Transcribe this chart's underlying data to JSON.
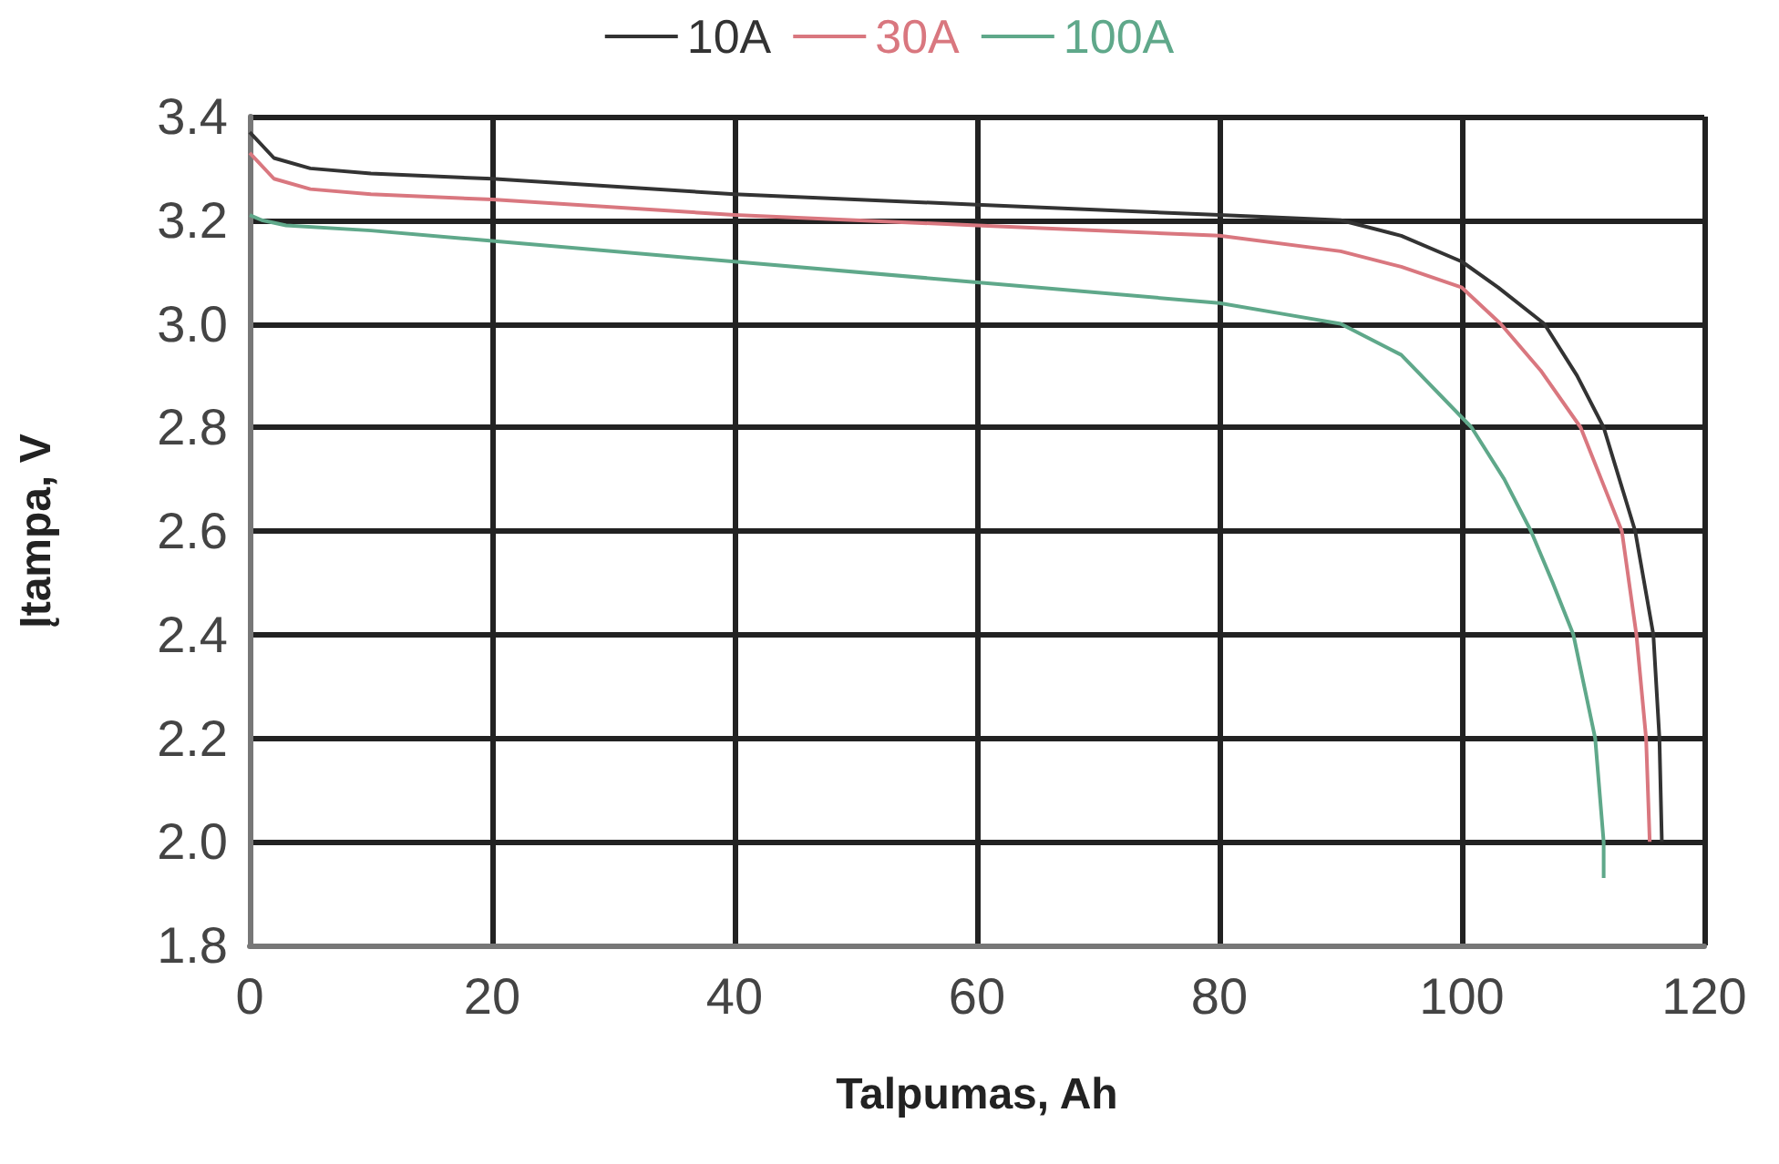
{
  "chart_data": {
    "type": "line",
    "xlabel": "Talpumas, Ah",
    "ylabel": "Įtampa, V",
    "xlim": [
      0,
      120
    ],
    "xticks": [
      0,
      20,
      40,
      60,
      80,
      100,
      120
    ],
    "ylim": [
      1.8,
      3.4
    ],
    "yticks": [
      {
        "value": 1.8,
        "label": "1.8"
      },
      {
        "value": 2.0,
        "label": "2.0"
      },
      {
        "value": 2.2,
        "label": "2.2"
      },
      {
        "value": 2.4,
        "label": "2.4"
      },
      {
        "value": 2.6,
        "label": "2.6"
      },
      {
        "value": 2.8,
        "label": "2.8"
      },
      {
        "value": 3.0,
        "label": "3.0"
      },
      {
        "value": 3.2,
        "label": "3.2"
      },
      {
        "value": 3.4,
        "label": "3.4"
      }
    ],
    "grid": true,
    "legend": "top",
    "marker": "none",
    "line_style": "solid",
    "series": [
      {
        "name": "10A",
        "color": "#333333",
        "x": [
          0,
          2,
          5,
          10,
          20,
          40,
          60,
          80,
          90,
          95,
          100,
          103,
          106.8,
          109.5,
          111.7,
          113,
          114.3,
          115.8,
          116.3,
          116.5
        ],
        "values": [
          3.37,
          3.32,
          3.3,
          3.29,
          3.28,
          3.25,
          3.23,
          3.21,
          3.2,
          3.17,
          3.12,
          3.07,
          3.0,
          2.9,
          2.8,
          2.7,
          2.6,
          2.4,
          2.2,
          2.0
        ]
      },
      {
        "name": "30A",
        "color": "#d9777f",
        "x": [
          0,
          2,
          5,
          10,
          20,
          40,
          60,
          80,
          90,
          95,
          100,
          103.2,
          106.5,
          109.8,
          111.5,
          113.2,
          114.4,
          115.2,
          115.5
        ],
        "values": [
          3.33,
          3.28,
          3.26,
          3.25,
          3.24,
          3.21,
          3.19,
          3.17,
          3.14,
          3.11,
          3.07,
          3.0,
          2.91,
          2.8,
          2.7,
          2.6,
          2.4,
          2.2,
          2.0
        ]
      },
      {
        "name": "100A",
        "color": "#5fa88a",
        "x": [
          0,
          1,
          3,
          10,
          20,
          40,
          60,
          80,
          85,
          90,
          95,
          100.8,
          103.5,
          105.7,
          107.5,
          109.2,
          111,
          111.7,
          111.7
        ],
        "values": [
          3.21,
          3.2,
          3.19,
          3.18,
          3.16,
          3.12,
          3.08,
          3.04,
          3.02,
          3.0,
          2.94,
          2.8,
          2.7,
          2.6,
          2.5,
          2.4,
          2.2,
          2.0,
          1.93
        ]
      }
    ]
  }
}
